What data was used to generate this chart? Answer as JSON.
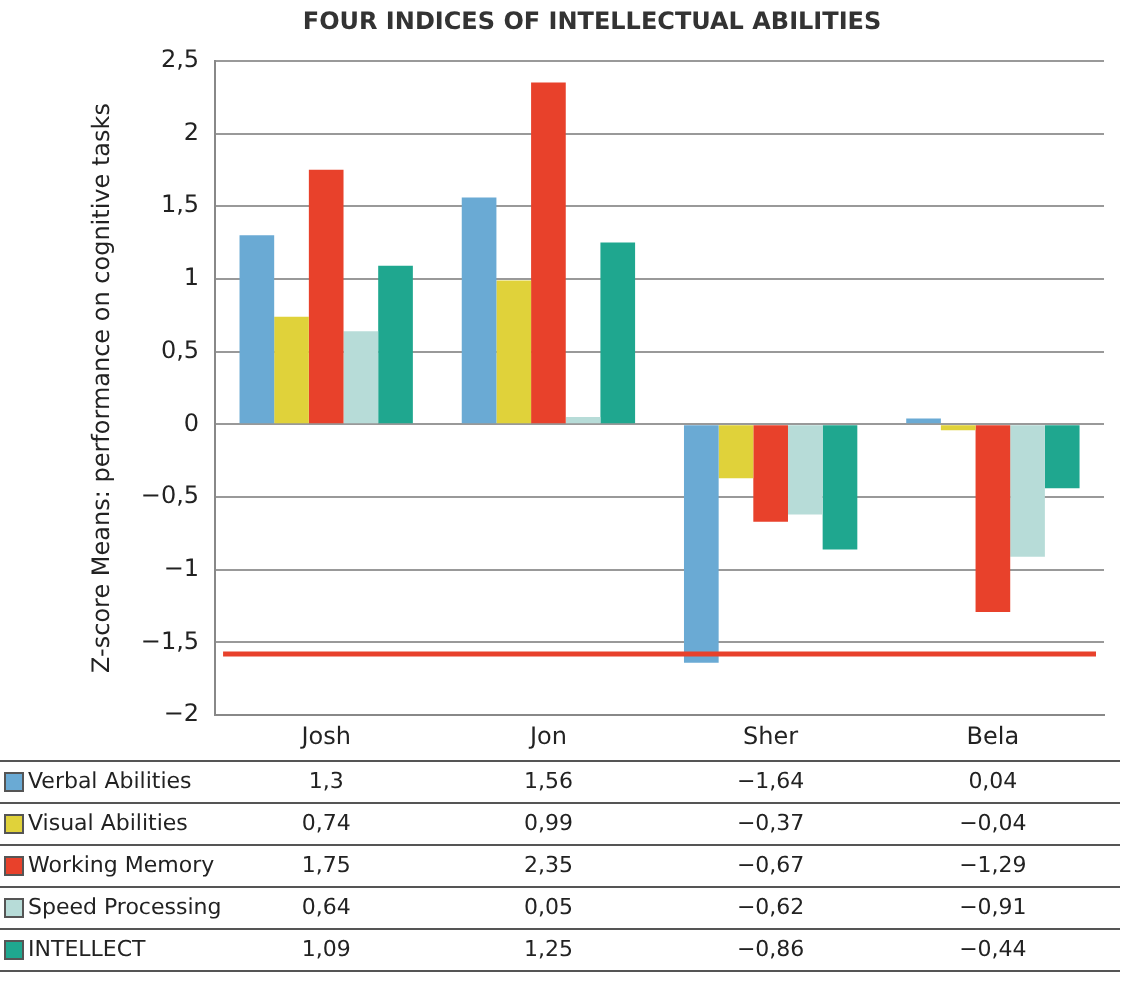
{
  "chart_data": {
    "type": "bar",
    "title": "FOUR INDICES OF INTELLECTUAL ABILITIES",
    "ylabel": "Z-score Means: performance on cognitive tasks",
    "categories": [
      "Josh",
      "Jon",
      "Sher",
      "Bela"
    ],
    "series": [
      {
        "name": "Verbal Abilities",
        "color": "#6aaad4",
        "values": [
          1.3,
          1.56,
          -1.64,
          0.04
        ],
        "value_labels": [
          "1,3",
          "1,56",
          "−1,64",
          "0,04"
        ]
      },
      {
        "name": "Visual Abilities",
        "color": "#e0d23a",
        "values": [
          0.74,
          0.99,
          -0.37,
          -0.04
        ],
        "value_labels": [
          "0,74",
          "0,99",
          "−0,37",
          "−0,04"
        ]
      },
      {
        "name": "Working Memory",
        "color": "#e8412b",
        "values": [
          1.75,
          2.35,
          -0.67,
          -1.29
        ],
        "value_labels": [
          "1,75",
          "2,35",
          "−0,67",
          "−1,29"
        ]
      },
      {
        "name": "Speed Processing",
        "color": "#b7dcd8",
        "values": [
          0.64,
          0.05,
          -0.62,
          -0.91
        ],
        "value_labels": [
          "0,64",
          "0,05",
          "−0,62",
          "−0,91"
        ]
      },
      {
        "name": "INTELLECT",
        "color": "#1fa78f",
        "values": [
          1.09,
          1.25,
          -0.86,
          -0.44
        ],
        "value_labels": [
          "1,09",
          "1,25",
          "−0,86",
          "−0,44"
        ]
      }
    ],
    "ylim": [
      -2,
      2.5
    ],
    "yticks": [
      {
        "value": -2,
        "label": "−2"
      },
      {
        "value": -1.5,
        "label": "−1,5"
      },
      {
        "value": -1,
        "label": "−1"
      },
      {
        "value": -0.5,
        "label": "−0,5"
      },
      {
        "value": 0,
        "label": "0"
      },
      {
        "value": 0.5,
        "label": "0,5"
      },
      {
        "value": 1,
        "label": "1"
      },
      {
        "value": 1.5,
        "label": "1,5"
      },
      {
        "value": 2,
        "label": "2"
      },
      {
        "value": 2.5,
        "label": "2,5"
      }
    ],
    "ref_lines": [
      {
        "axis": "y",
        "value": -1.58,
        "color": "#e8412b"
      }
    ],
    "grid": "y",
    "legend": "bottom"
  }
}
